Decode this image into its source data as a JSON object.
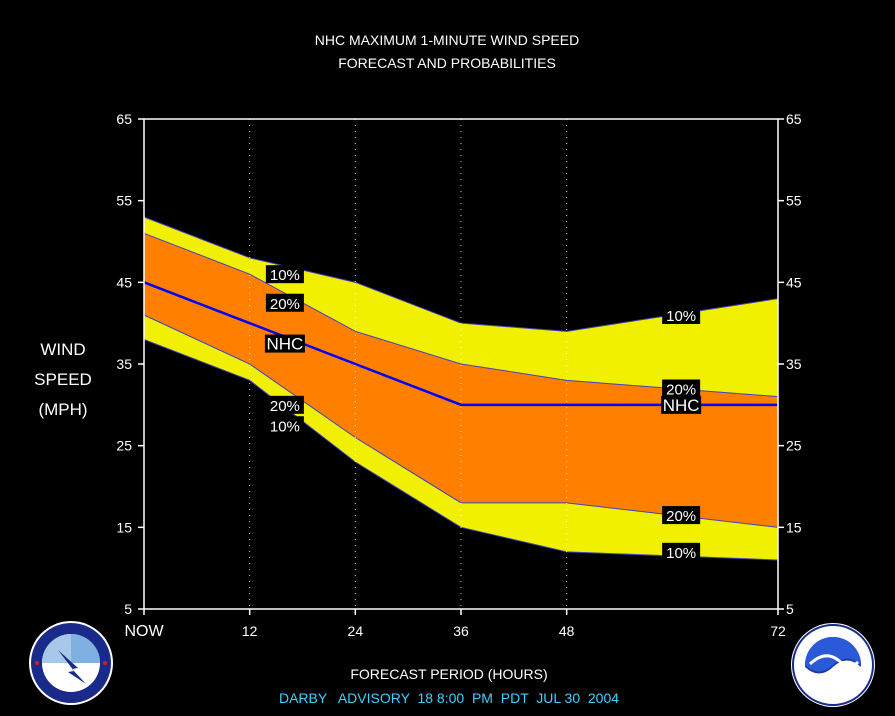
{
  "chart_data": {
    "type": "area",
    "title": "NHC MAXIMUM 1-MINUTE WIND SPEED",
    "subtitle": "FORECAST AND PROBABILITIES",
    "xlabel": "FORECAST PERIOD (HOURS)",
    "ylabel_lines": [
      "WIND",
      "SPEED",
      "(MPH)"
    ],
    "footer": "DARBY   ADVISORY  18 8:00  PM  PDT  JUL 30  2004",
    "xlim": [
      0,
      72
    ],
    "ylim": [
      5,
      65
    ],
    "yticks": [
      5,
      15,
      25,
      35,
      45,
      55,
      65
    ],
    "xticks": [
      {
        "value": 0,
        "label": "NOW"
      },
      {
        "value": 12,
        "label": "12"
      },
      {
        "value": 24,
        "label": "24"
      },
      {
        "value": 36,
        "label": "36"
      },
      {
        "value": 48,
        "label": "48"
      },
      {
        "value": 72,
        "label": "72"
      }
    ],
    "grid": "vertical dotted at 12, 24, 36, 48",
    "x": [
      0,
      12,
      24,
      36,
      48,
      72
    ],
    "series": [
      {
        "label": "10%",
        "band": "upper",
        "values": [
          53,
          48,
          45,
          40,
          39,
          43
        ]
      },
      {
        "label": "20%",
        "band": "upper",
        "values": [
          51,
          46,
          39,
          35,
          33,
          31
        ]
      },
      {
        "label": "NHC",
        "band": "forecast",
        "values": [
          45,
          40,
          35,
          30,
          30,
          30
        ]
      },
      {
        "label": "20%",
        "band": "lower",
        "values": [
          41,
          35,
          26,
          18,
          18,
          15
        ]
      },
      {
        "label": "10%",
        "band": "lower",
        "values": [
          38,
          33,
          23,
          15,
          12,
          11
        ]
      }
    ],
    "band_labels": [
      {
        "text": "10%",
        "x": 16,
        "y": 46
      },
      {
        "text": "20%",
        "x": 16,
        "y": 42.5
      },
      {
        "text": "NHC",
        "x": 16,
        "y": 37.5
      },
      {
        "text": "20%",
        "x": 16,
        "y": 30
      },
      {
        "text": "10%",
        "x": 16,
        "y": 27.5
      },
      {
        "text": "10%",
        "x": 61,
        "y": 41
      },
      {
        "text": "20%",
        "x": 61,
        "y": 32
      },
      {
        "text": "NHC",
        "x": 61,
        "y": 30
      },
      {
        "text": "20%",
        "x": 61,
        "y": 16.5
      },
      {
        "text": "10%",
        "x": 61,
        "y": 12
      }
    ],
    "colors": {
      "background": "#000000",
      "outer_band": "#f0f000",
      "inner_band": "#ff8000",
      "forecast_line": "#0000ff",
      "text": "#ffffff",
      "footer_text": "#40d0ff"
    }
  }
}
